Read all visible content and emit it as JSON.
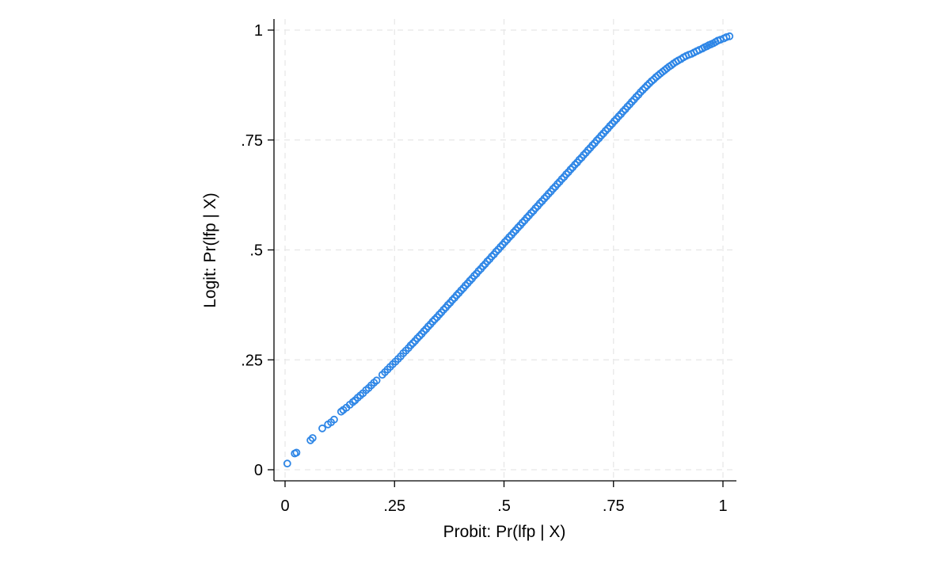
{
  "chart_data": {
    "type": "scatter",
    "title": "",
    "xlabel": "Probit: Pr(lfp | X)",
    "ylabel": "Logit: Pr(lfp | X)",
    "xlim": [
      0,
      1
    ],
    "ylim": [
      0,
      1
    ],
    "x_ticks": [
      {
        "value": 0,
        "label": "0"
      },
      {
        "value": 0.25,
        "label": ".25"
      },
      {
        "value": 0.5,
        "label": ".5"
      },
      {
        "value": 0.75,
        "label": ".75"
      },
      {
        "value": 1,
        "label": "1"
      }
    ],
    "y_ticks": [
      {
        "value": 0,
        "label": "0"
      },
      {
        "value": 0.25,
        "label": ".25"
      },
      {
        "value": 0.5,
        "label": ".5"
      },
      {
        "value": 0.75,
        "label": ".75"
      },
      {
        "value": 1,
        "label": "1"
      }
    ],
    "grid": true,
    "legend": "none",
    "marker": "hollow-circle",
    "color": "#2e86e6",
    "series": [
      {
        "points": [
          [
            0.005,
            0.014
          ],
          [
            0.022,
            0.037
          ],
          [
            0.026,
            0.039
          ],
          [
            0.058,
            0.067
          ],
          [
            0.063,
            0.072
          ],
          [
            0.085,
            0.094
          ],
          [
            0.098,
            0.103
          ],
          [
            0.105,
            0.108
          ],
          [
            0.112,
            0.114
          ],
          [
            0.128,
            0.132
          ],
          [
            0.133,
            0.136
          ],
          [
            0.14,
            0.141
          ],
          [
            0.148,
            0.148
          ],
          [
            0.155,
            0.154
          ],
          [
            0.16,
            0.158
          ],
          [
            0.166,
            0.164
          ],
          [
            0.172,
            0.169
          ],
          [
            0.178,
            0.174
          ],
          [
            0.185,
            0.181
          ],
          [
            0.191,
            0.186
          ],
          [
            0.197,
            0.192
          ],
          [
            0.203,
            0.198
          ],
          [
            0.209,
            0.203
          ],
          [
            0.222,
            0.216
          ],
          [
            0.228,
            0.222
          ],
          [
            0.234,
            0.228
          ],
          [
            0.24,
            0.234
          ],
          [
            0.246,
            0.24
          ],
          [
            0.252,
            0.246
          ],
          [
            0.258,
            0.252
          ],
          [
            0.264,
            0.258
          ],
          [
            0.27,
            0.265
          ],
          [
            0.276,
            0.271
          ],
          [
            0.282,
            0.277
          ],
          [
            0.287,
            0.283
          ],
          [
            0.292,
            0.288
          ],
          [
            0.297,
            0.293
          ],
          [
            0.302,
            0.299
          ],
          [
            0.307,
            0.304
          ],
          [
            0.312,
            0.309
          ],
          [
            0.317,
            0.315
          ],
          [
            0.322,
            0.32
          ],
          [
            0.327,
            0.326
          ],
          [
            0.332,
            0.331
          ],
          [
            0.337,
            0.337
          ],
          [
            0.342,
            0.342
          ],
          [
            0.347,
            0.347
          ],
          [
            0.352,
            0.353
          ],
          [
            0.357,
            0.358
          ],
          [
            0.362,
            0.364
          ],
          [
            0.367,
            0.369
          ],
          [
            0.372,
            0.375
          ],
          [
            0.377,
            0.38
          ],
          [
            0.382,
            0.386
          ],
          [
            0.387,
            0.391
          ],
          [
            0.392,
            0.397
          ],
          [
            0.397,
            0.402
          ],
          [
            0.402,
            0.408
          ],
          [
            0.407,
            0.413
          ],
          [
            0.412,
            0.419
          ],
          [
            0.417,
            0.424
          ],
          [
            0.422,
            0.43
          ],
          [
            0.427,
            0.435
          ],
          [
            0.432,
            0.441
          ],
          [
            0.437,
            0.446
          ],
          [
            0.442,
            0.452
          ],
          [
            0.447,
            0.457
          ],
          [
            0.452,
            0.463
          ],
          [
            0.457,
            0.468
          ],
          [
            0.462,
            0.474
          ],
          [
            0.467,
            0.479
          ],
          [
            0.472,
            0.485
          ],
          [
            0.477,
            0.49
          ],
          [
            0.482,
            0.496
          ],
          [
            0.487,
            0.501
          ],
          [
            0.492,
            0.507
          ],
          [
            0.497,
            0.512
          ],
          [
            0.502,
            0.518
          ],
          [
            0.507,
            0.523
          ],
          [
            0.512,
            0.529
          ],
          [
            0.517,
            0.534
          ],
          [
            0.522,
            0.54
          ],
          [
            0.527,
            0.545
          ],
          [
            0.532,
            0.551
          ],
          [
            0.537,
            0.556
          ],
          [
            0.542,
            0.562
          ],
          [
            0.547,
            0.567
          ],
          [
            0.552,
            0.573
          ],
          [
            0.557,
            0.578
          ],
          [
            0.562,
            0.584
          ],
          [
            0.567,
            0.589
          ],
          [
            0.572,
            0.595
          ],
          [
            0.577,
            0.6
          ],
          [
            0.582,
            0.606
          ],
          [
            0.587,
            0.611
          ],
          [
            0.592,
            0.617
          ],
          [
            0.597,
            0.622
          ],
          [
            0.602,
            0.628
          ],
          [
            0.607,
            0.633
          ],
          [
            0.612,
            0.639
          ],
          [
            0.617,
            0.644
          ],
          [
            0.622,
            0.65
          ],
          [
            0.627,
            0.655
          ],
          [
            0.632,
            0.661
          ],
          [
            0.637,
            0.666
          ],
          [
            0.642,
            0.672
          ],
          [
            0.647,
            0.677
          ],
          [
            0.652,
            0.683
          ],
          [
            0.657,
            0.688
          ],
          [
            0.662,
            0.694
          ],
          [
            0.667,
            0.699
          ],
          [
            0.672,
            0.705
          ],
          [
            0.677,
            0.71
          ],
          [
            0.682,
            0.716
          ],
          [
            0.687,
            0.721
          ],
          [
            0.692,
            0.727
          ],
          [
            0.697,
            0.732
          ],
          [
            0.702,
            0.738
          ],
          [
            0.707,
            0.743
          ],
          [
            0.712,
            0.749
          ],
          [
            0.717,
            0.754
          ],
          [
            0.722,
            0.76
          ],
          [
            0.727,
            0.765
          ],
          [
            0.732,
            0.771
          ],
          [
            0.737,
            0.776
          ],
          [
            0.742,
            0.782
          ],
          [
            0.747,
            0.787
          ],
          [
            0.752,
            0.793
          ],
          [
            0.757,
            0.798
          ],
          [
            0.762,
            0.804
          ],
          [
            0.767,
            0.809
          ],
          [
            0.772,
            0.815
          ],
          [
            0.777,
            0.82
          ],
          [
            0.782,
            0.826
          ],
          [
            0.787,
            0.831
          ],
          [
            0.792,
            0.837
          ],
          [
            0.797,
            0.842
          ],
          [
            0.802,
            0.848
          ],
          [
            0.807,
            0.853
          ],
          [
            0.812,
            0.859
          ],
          [
            0.817,
            0.864
          ],
          [
            0.822,
            0.869
          ],
          [
            0.827,
            0.874
          ],
          [
            0.832,
            0.879
          ],
          [
            0.837,
            0.884
          ],
          [
            0.842,
            0.888
          ],
          [
            0.847,
            0.893
          ],
          [
            0.852,
            0.897
          ],
          [
            0.857,
            0.901
          ],
          [
            0.862,
            0.905
          ],
          [
            0.867,
            0.909
          ],
          [
            0.872,
            0.913
          ],
          [
            0.877,
            0.917
          ],
          [
            0.882,
            0.92
          ],
          [
            0.887,
            0.924
          ],
          [
            0.893,
            0.928
          ],
          [
            0.898,
            0.931
          ],
          [
            0.904,
            0.934
          ],
          [
            0.91,
            0.938
          ],
          [
            0.916,
            0.941
          ],
          [
            0.922,
            0.944
          ],
          [
            0.928,
            0.946
          ],
          [
            0.934,
            0.949
          ],
          [
            0.94,
            0.952
          ],
          [
            0.946,
            0.955
          ],
          [
            0.953,
            0.958
          ],
          [
            0.958,
            0.961
          ],
          [
            0.963,
            0.963
          ],
          [
            0.968,
            0.966
          ],
          [
            0.973,
            0.968
          ],
          [
            0.978,
            0.97
          ],
          [
            0.983,
            0.973
          ],
          [
            0.988,
            0.976
          ],
          [
            0.994,
            0.978
          ],
          [
            1.002,
            0.981
          ],
          [
            1.008,
            0.984
          ],
          [
            1.015,
            0.986
          ]
        ]
      }
    ]
  }
}
